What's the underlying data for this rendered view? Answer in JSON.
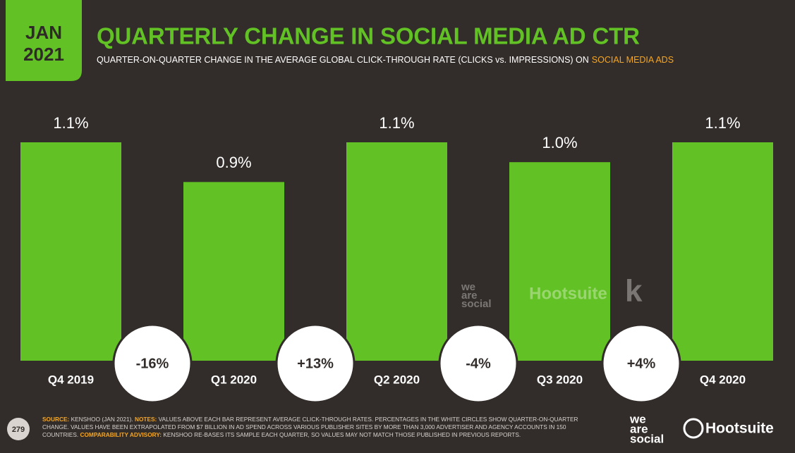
{
  "header": {
    "date_line1": "JAN",
    "date_line2": "2021",
    "title": "QUARTERLY CHANGE IN SOCIAL MEDIA AD CTR",
    "subtitle": "QUARTER-ON-QUARTER CHANGE IN THE AVERAGE GLOBAL CLICK-THROUGH RATE (CLICKS vs. IMPRESSIONS) ON",
    "subtitle_highlight": "SOCIAL MEDIA ADS"
  },
  "chart_data": {
    "type": "bar",
    "categories": [
      "Q4 2019",
      "Q1 2020",
      "Q2 2020",
      "Q3 2020",
      "Q4 2020"
    ],
    "values": [
      1.1,
      0.9,
      1.1,
      1.0,
      1.1
    ],
    "value_labels": [
      "1.1%",
      "0.9%",
      "1.1%",
      "1.0%",
      "1.1%"
    ],
    "color": "#62c124",
    "changes": {
      "values": [
        -16,
        13,
        -4,
        4
      ],
      "value_labels": [
        "-16%",
        "+13%",
        "-4%",
        "+4%"
      ]
    }
  },
  "watermark": {
    "agency": [
      "we",
      "are",
      "social"
    ],
    "platform": "Hootsuite",
    "partner": "k"
  },
  "footer": {
    "source_label": "SOURCE:",
    "source": "KENSHOO (JAN 2021).",
    "notes_label": "NOTES:",
    "notes": "VALUES ABOVE EACH BAR REPRESENT AVERAGE CLICK-THROUGH RATES. PERCENTAGES IN THE WHITE CIRCLES SHOW QUARTER-ON-QUARTER CHANGE. VALUES HAVE BEEN EXTRAPOLATED FROM $7 BILLION IN AD SPEND ACROSS VARIOUS PUBLISHER SITES BY MORE THAN 3,000 ADVERTISER AND AGENCY ACCOUNTS IN 150 COUNTRIES.",
    "advisory_label": "COMPARABILITY ADVISORY:",
    "advisory": "KENSHOO RE-BASES ITS SAMPLE EACH QUARTER, SO VALUES MAY NOT MATCH THOSE PUBLISHED IN PREVIOUS REPORTS.",
    "page_number": "279",
    "brand_agency": [
      "we",
      "are",
      "social"
    ],
    "brand_platform": "Hootsuite"
  }
}
